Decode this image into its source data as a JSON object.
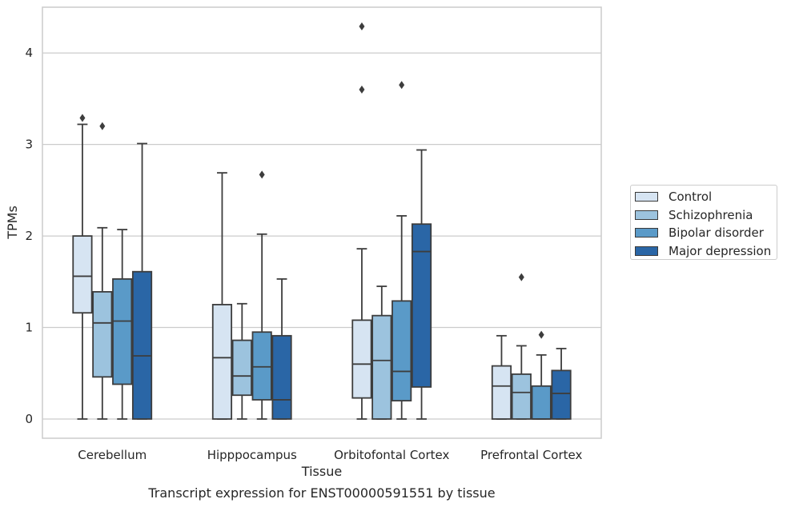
{
  "chart_data": {
    "type": "box",
    "title": "",
    "caption": "Transcript expression for ENST00000591551 by tissue",
    "xlabel": "Tissue",
    "ylabel": "TPMs",
    "ylim": [
      -0.21,
      4.5
    ],
    "yticks": [
      "0",
      "1",
      "2",
      "3",
      "4"
    ],
    "grid": "horizontal",
    "legend_position": "right",
    "categories": [
      "Cerebellum",
      "Hipppocampus",
      "Orbitofontal Cortex",
      "Prefrontal Cortex"
    ],
    "series": [
      {
        "name": "Control",
        "color": "#d6e4f2",
        "boxes": [
          {
            "whislo": 0.0,
            "q1": 1.16,
            "med": 1.56,
            "q3": 2.0,
            "whishi": 3.22,
            "fliers": [
              3.29
            ]
          },
          {
            "whislo": 0.0,
            "q1": 0.0,
            "med": 0.67,
            "q3": 1.25,
            "whishi": 2.69,
            "fliers": []
          },
          {
            "whislo": 0.0,
            "q1": 0.23,
            "med": 0.6,
            "q3": 1.08,
            "whishi": 1.86,
            "fliers": [
              3.6,
              4.29
            ]
          },
          {
            "whislo": 0.0,
            "q1": 0.0,
            "med": 0.36,
            "q3": 0.58,
            "whishi": 0.91,
            "fliers": []
          }
        ]
      },
      {
        "name": "Schizophrenia",
        "color": "#9cc3de",
        "boxes": [
          {
            "whislo": 0.0,
            "q1": 0.46,
            "med": 1.05,
            "q3": 1.39,
            "whishi": 2.09,
            "fliers": [
              3.2
            ]
          },
          {
            "whislo": 0.0,
            "q1": 0.26,
            "med": 0.47,
            "q3": 0.86,
            "whishi": 1.26,
            "fliers": []
          },
          {
            "whislo": 0.0,
            "q1": 0.0,
            "med": 0.64,
            "q3": 1.13,
            "whishi": 1.45,
            "fliers": []
          },
          {
            "whislo": 0.0,
            "q1": 0.0,
            "med": 0.29,
            "q3": 0.49,
            "whishi": 0.8,
            "fliers": [
              1.55
            ]
          }
        ]
      },
      {
        "name": "Bipolar disorder",
        "color": "#5a9ac8",
        "boxes": [
          {
            "whislo": 0.0,
            "q1": 0.38,
            "med": 1.07,
            "q3": 1.53,
            "whishi": 2.07,
            "fliers": []
          },
          {
            "whislo": 0.0,
            "q1": 0.21,
            "med": 0.57,
            "q3": 0.95,
            "whishi": 2.02,
            "fliers": [
              2.67
            ]
          },
          {
            "whislo": 0.0,
            "q1": 0.2,
            "med": 0.52,
            "q3": 1.29,
            "whishi": 2.22,
            "fliers": [
              3.65
            ]
          },
          {
            "whislo": 0.0,
            "q1": 0.0,
            "med": 0.0,
            "q3": 0.36,
            "whishi": 0.7,
            "fliers": [
              0.92
            ]
          }
        ]
      },
      {
        "name": "Major depression",
        "color": "#2a66a6",
        "boxes": [
          {
            "whislo": 0.0,
            "q1": 0.0,
            "med": 0.69,
            "q3": 1.61,
            "whishi": 3.01,
            "fliers": []
          },
          {
            "whislo": 0.0,
            "q1": 0.0,
            "med": 0.21,
            "q3": 0.91,
            "whishi": 1.53,
            "fliers": []
          },
          {
            "whislo": 0.0,
            "q1": 0.35,
            "med": 1.83,
            "q3": 2.13,
            "whishi": 2.94,
            "fliers": []
          },
          {
            "whislo": 0.0,
            "q1": 0.0,
            "med": 0.28,
            "q3": 0.53,
            "whishi": 0.77,
            "fliers": []
          }
        ]
      }
    ]
  }
}
